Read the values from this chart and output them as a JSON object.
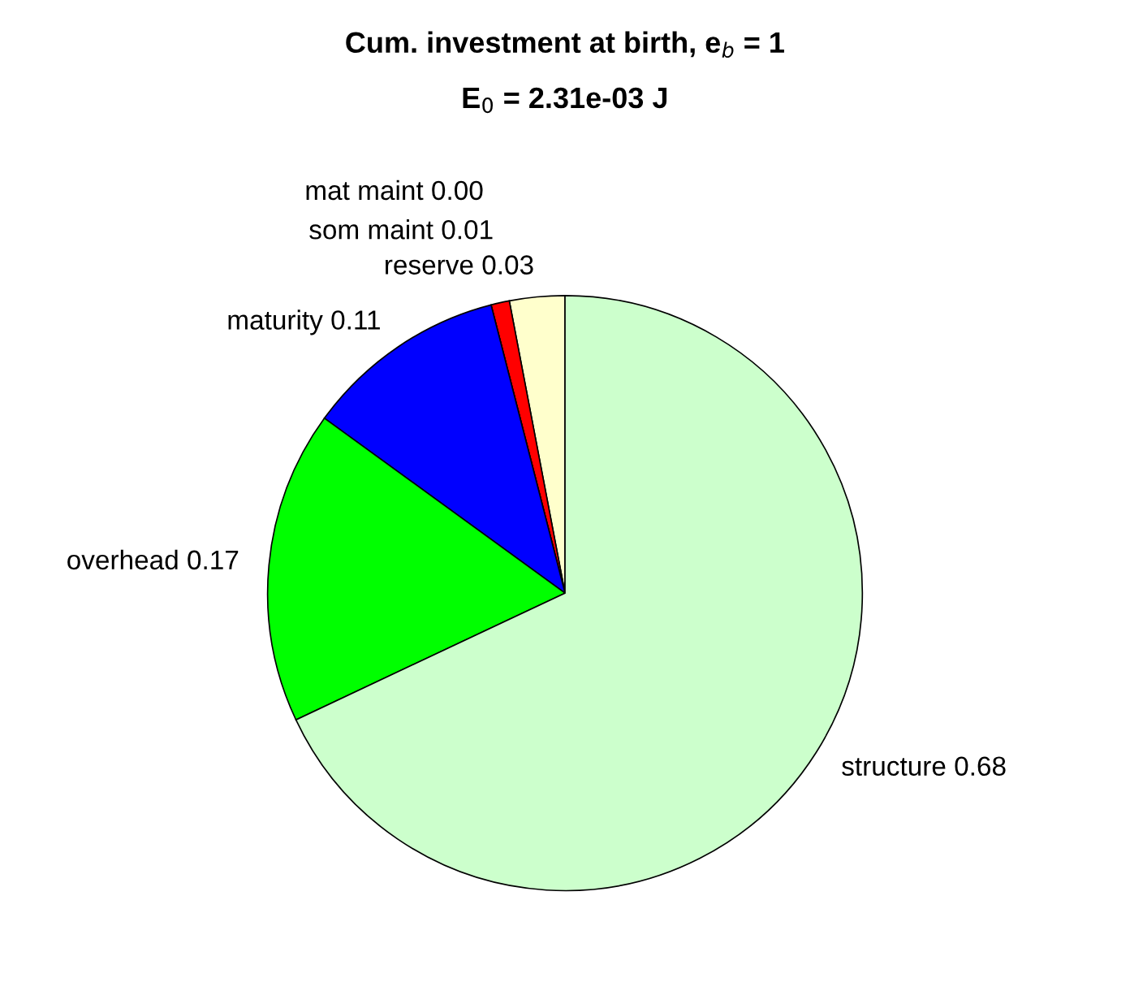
{
  "chart_data": {
    "type": "pie",
    "title": "Cum. investment at birth, e$_{b}$ = 1",
    "subtitle": "E$_{0}$ = 2.31e-03 J",
    "categories": [
      "reserve 0.03",
      "som maint 0.01",
      "mat maint 0.00",
      "maturity 0.11",
      "overhead 0.17",
      "structure 0.68"
    ],
    "values": [
      0.03,
      0.01,
      0.0,
      0.11,
      0.17,
      0.68
    ],
    "colors": [
      "#ffffcc",
      "#ff0000",
      "#ff00ff",
      "#0000ff",
      "#00ff00",
      "#ccffcc"
    ],
    "legend": false
  }
}
